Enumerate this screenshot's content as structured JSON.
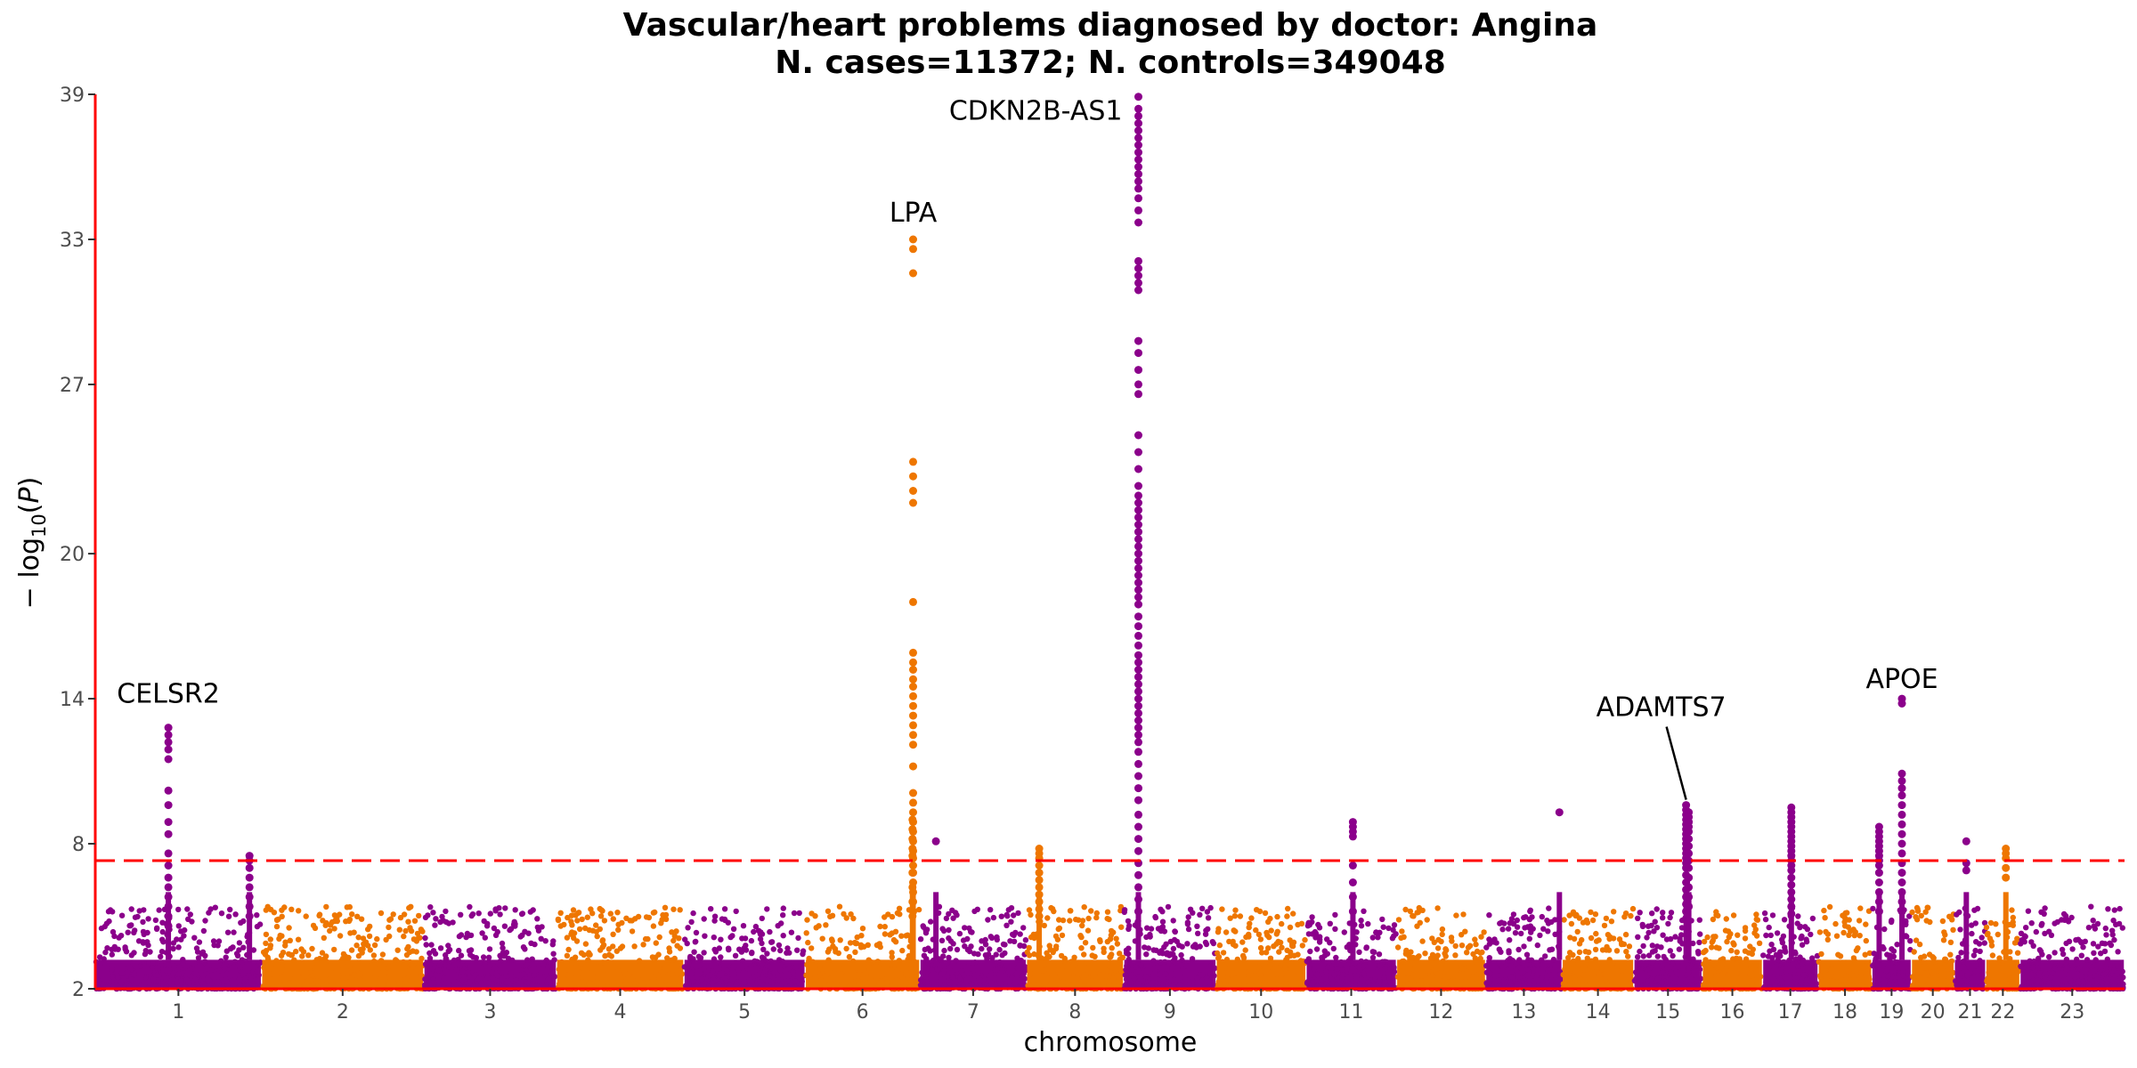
{
  "chart_data": {
    "type": "scatter",
    "title": "Vascular/heart problems diagnosed by doctor: Angina",
    "subtitle": "N. cases=11372; N. controls=349048",
    "xlabel": "chromosome",
    "ylabel": "− log10(P)",
    "ylim": [
      2,
      39
    ],
    "yticks": [
      2,
      8,
      14,
      20,
      27,
      33,
      39
    ],
    "significance_threshold": 7.3,
    "colors": {
      "odd_chromosome": "#8b008b",
      "even_chromosome": "#ee7600",
      "axis_line": "#ff0000",
      "threshold_line": "#ff0000"
    },
    "chromosomes": [
      {
        "label": "1",
        "start": 0,
        "end": 248
      },
      {
        "label": "2",
        "start": 248,
        "end": 490
      },
      {
        "label": "3",
        "start": 490,
        "end": 688
      },
      {
        "label": "4",
        "start": 688,
        "end": 878
      },
      {
        "label": "5",
        "start": 878,
        "end": 1059
      },
      {
        "label": "6",
        "start": 1059,
        "end": 1230
      },
      {
        "label": "7",
        "start": 1230,
        "end": 1389
      },
      {
        "label": "8",
        "start": 1389,
        "end": 1534
      },
      {
        "label": "9",
        "start": 1534,
        "end": 1672
      },
      {
        "label": "10",
        "start": 1672,
        "end": 1806
      },
      {
        "label": "11",
        "start": 1806,
        "end": 1941
      },
      {
        "label": "12",
        "start": 1941,
        "end": 2074
      },
      {
        "label": "13",
        "start": 2074,
        "end": 2188
      },
      {
        "label": "14",
        "start": 2188,
        "end": 2295
      },
      {
        "label": "15",
        "start": 2295,
        "end": 2397
      },
      {
        "label": "16",
        "start": 2397,
        "end": 2487
      },
      {
        "label": "17",
        "start": 2487,
        "end": 2570
      },
      {
        "label": "18",
        "start": 2570,
        "end": 2650
      },
      {
        "label": "19",
        "start": 2650,
        "end": 2709
      },
      {
        "label": "20",
        "start": 2709,
        "end": 2773
      },
      {
        "label": "21",
        "start": 2773,
        "end": 2820
      },
      {
        "label": "22",
        "start": 2820,
        "end": 2871
      },
      {
        "label": "23",
        "start": 2871,
        "end": 3027
      }
    ],
    "peaks": [
      {
        "chr": 1,
        "pos": 109,
        "y": [
          12.8,
          12.5,
          12.2,
          11.9,
          11.5,
          10.2,
          9.6,
          8.9,
          8.4,
          7.6,
          7.1,
          6.6,
          6.2,
          5.8,
          5.4,
          5.0,
          4.6
        ]
      },
      {
        "chr": 1,
        "pos": 230,
        "y": [
          7.5,
          7.3,
          7.0,
          6.6,
          6.2,
          5.8,
          5.4,
          5.0
        ]
      },
      {
        "chr": 6,
        "pos": 160,
        "y": [
          9.0,
          8.6,
          8.2,
          7.8,
          7.5,
          6.8,
          6.2,
          5.6,
          5.0
        ]
      },
      {
        "chr": 6,
        "pos": 161,
        "y": [
          33.0,
          32.6,
          31.6,
          23.8,
          23.2,
          22.6,
          22.1,
          18.0,
          15.9,
          15.5,
          15.2,
          14.8,
          14.5,
          14.1,
          13.7,
          13.3,
          12.9,
          12.5,
          12.1,
          11.2,
          10.1,
          9.7,
          9.3,
          8.9,
          8.5,
          8.1,
          7.7,
          7.4,
          7.1,
          6.8,
          6.4,
          6.0,
          5.6,
          5.2
        ]
      },
      {
        "chr": 7,
        "pos": 24,
        "y": [
          8.1
        ]
      },
      {
        "chr": 8,
        "pos": 19,
        "y": [
          7.8,
          7.6,
          7.4,
          7.1,
          6.8,
          6.5,
          6.2,
          5.9,
          5.6,
          5.3,
          5.0
        ]
      },
      {
        "chr": 9,
        "pos": 22,
        "y": [
          38.9,
          38.4,
          38.1,
          37.8,
          37.5,
          37.2,
          36.9,
          36.6,
          36.3,
          36.0,
          35.7,
          35.4,
          35.1,
          34.7,
          34.2,
          33.7,
          32.1,
          31.8,
          31.5,
          31.2,
          30.9,
          28.8,
          28.3,
          27.6,
          27.0,
          26.6,
          24.9,
          24.2,
          23.5,
          22.8,
          22.4,
          22.1,
          21.8,
          21.5,
          21.2,
          20.9,
          20.6,
          20.3,
          20.0,
          19.7,
          19.4,
          19.1,
          18.8,
          18.5,
          18.2,
          17.9,
          17.4,
          17.0,
          16.6,
          16.2,
          15.8,
          15.5,
          15.2,
          14.9,
          14.6,
          14.3,
          14.0,
          13.7,
          13.4,
          13.1,
          12.8,
          12.5,
          12.2,
          11.8,
          11.3,
          10.8,
          10.3,
          9.8,
          9.2,
          8.7,
          8.2,
          7.7,
          7.2,
          6.7,
          6.2,
          5.7,
          5.2
        ]
      },
      {
        "chr": 11,
        "pos": 70,
        "y": [
          8.9,
          8.7,
          8.5,
          8.3,
          7.1,
          6.4,
          5.8,
          5.2
        ]
      },
      {
        "chr": 13,
        "pos": 110,
        "y": [
          9.3
        ]
      },
      {
        "chr": 15,
        "pos": 78,
        "y": [
          9.6,
          9.4,
          9.2,
          9.0,
          8.8,
          8.6,
          8.4,
          8.2,
          8.0,
          7.8,
          7.6,
          7.4,
          7.2,
          7.0,
          6.7,
          6.4,
          6.1,
          5.8,
          5.5,
          5.2,
          4.9
        ]
      },
      {
        "chr": 15,
        "pos": 82,
        "y": [
          9.3,
          9.1,
          8.9,
          8.7,
          8.5,
          8.2,
          7.9,
          7.6,
          7.3,
          7.0,
          6.6,
          6.2,
          5.8,
          5.4
        ]
      },
      {
        "chr": 17,
        "pos": 43,
        "y": [
          9.5,
          9.3,
          9.1,
          8.9,
          8.7,
          8.5,
          8.3,
          8.1,
          7.9,
          7.7,
          7.5,
          7.3,
          7.1,
          6.9,
          6.6,
          6.3,
          6.0,
          5.7,
          5.4,
          5.1
        ]
      },
      {
        "chr": 19,
        "pos": 11,
        "y": [
          8.7,
          8.5,
          8.3,
          8.1,
          7.9,
          7.7,
          7.5,
          7.3,
          7.1,
          6.8,
          6.4,
          6.0,
          5.6,
          5.2
        ]
      },
      {
        "chr": 19,
        "pos": 45,
        "y": [
          14.0,
          13.8,
          10.9,
          10.6,
          10.3,
          10.0,
          9.6,
          9.2,
          8.8,
          8.4,
          8.0,
          7.6,
          7.2,
          6.8,
          6.4,
          6.0,
          5.6,
          5.2
        ]
      },
      {
        "chr": 21,
        "pos": 18,
        "y": [
          8.1,
          7.2,
          6.9
        ]
      },
      {
        "chr": 22,
        "pos": 30,
        "y": [
          7.8,
          7.6,
          7.4,
          7.0,
          6.6
        ]
      }
    ],
    "annotations": [
      {
        "label": "CELSR2",
        "chr": 1,
        "pos": 109,
        "y": 12.8
      },
      {
        "label": "LPA",
        "chr": 6,
        "pos": 161,
        "y": 33.0
      },
      {
        "label": "CDKN2B-AS1",
        "chr": 9,
        "pos": 22,
        "y": 38.9
      },
      {
        "label": "ADAMTS7",
        "chr": 15,
        "pos": 78,
        "y": 9.6
      },
      {
        "label": "APOE",
        "chr": 19,
        "pos": 45,
        "y": 14.0
      }
    ]
  }
}
